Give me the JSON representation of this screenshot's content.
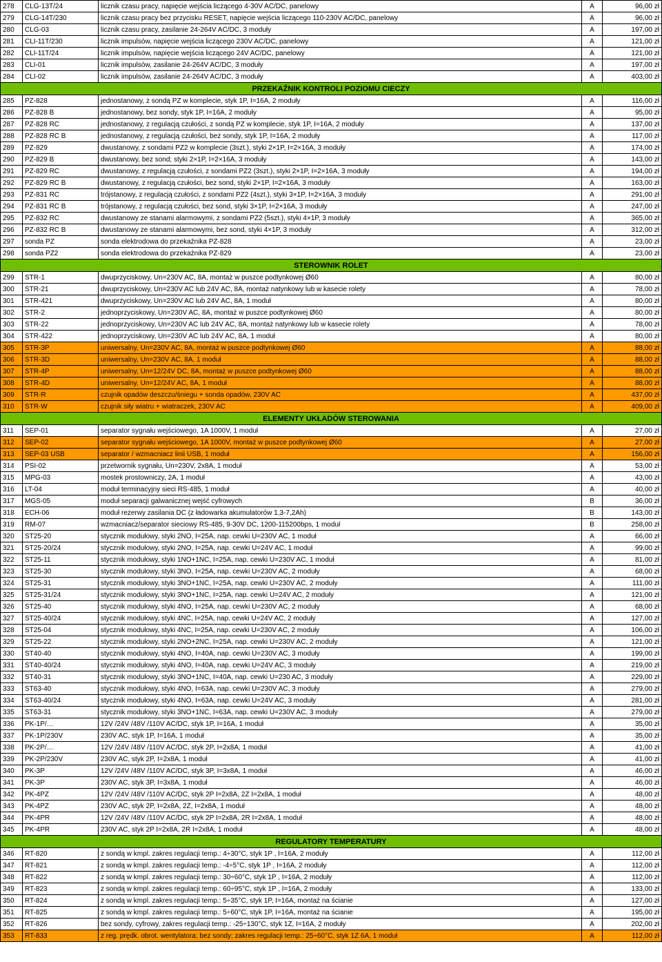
{
  "colors": {
    "green": "#6fbf00",
    "orange": "#ff9900",
    "border": "#000000",
    "bg": "#ffffff"
  },
  "sections": [
    {
      "header": null,
      "rows": [
        {
          "n": "278",
          "code": "CLG-13T/24",
          "desc": "licznik czasu pracy, napięcie wejścia liczącego 4-30V AC/DC, panelowy",
          "cat": "A",
          "price": "96,00 zł"
        },
        {
          "n": "279",
          "code": "CLG-14T/230",
          "desc": "licznik czasu pracy bez przycisku RESET, napięcie wejścia liczącego 110-230V AC/DC, panelowy",
          "cat": "A",
          "price": "96,00 zł"
        },
        {
          "n": "280",
          "code": "CLG-03",
          "desc": "licznik czasu pracy, zasilanie 24-264V AC/DC, 3 moduły",
          "cat": "A",
          "price": "197,00 zł"
        },
        {
          "n": "281",
          "code": "CLI-11T/230",
          "desc": "licznik impulsów, napięcie wejścia liczącego 230V AC/DC, panelowy",
          "cat": "A",
          "price": "121,00 zł"
        },
        {
          "n": "282",
          "code": "CLI-11T/24",
          "desc": "licznik impulsów,  napięcie wejścia liczącego 24V AC/DC, panelowy",
          "cat": "A",
          "price": "121,00 zł"
        },
        {
          "n": "283",
          "code": "CLI-01",
          "desc": "licznik impulsów, zasilanie 24-264V AC/DC, 3 moduły",
          "cat": "A",
          "price": "197,00 zł"
        },
        {
          "n": "284",
          "code": "CLI-02",
          "desc": "licznik impulsów, zasilanie 24-264V AC/DC, 3 moduły",
          "cat": "A",
          "price": "403,00 zł"
        }
      ]
    },
    {
      "header": "PRZEKAŹNIK KONTROLI POZIOMU CIECZY",
      "rows": [
        {
          "n": "285",
          "code": "PZ-828",
          "desc": "jednostanowy, z sondą PZ w komplecie, styk 1P, I=16A, 2 moduły",
          "cat": "A",
          "price": "116,00 zł"
        },
        {
          "n": "286",
          "code": "PZ-828 B",
          "desc": "jednostanowy, bez sondy, styk 1P, I=16A, 2 moduły",
          "cat": "A",
          "price": "95,00 zł"
        },
        {
          "n": "287",
          "code": "PZ-828 RC",
          "desc": "jednostanowy, z regulacją czułości, z sondą PZ w komplecie, styk 1P, I=16A, 2 moduły",
          "cat": "A",
          "price": "137,00 zł"
        },
        {
          "n": "288",
          "code": "PZ-828 RC B",
          "desc": "jednostanowy, z regulacją czułości, bez sondy, styk 1P, I=16A, 2 moduły",
          "cat": "A",
          "price": "117,00 zł"
        },
        {
          "n": "289",
          "code": "PZ-829",
          "desc": "dwustanowy, z sondami PZ2 w komplecie (3szt.), styki 2×1P, I=2×16A, 3 moduły",
          "cat": "A",
          "price": "174,00 zł"
        },
        {
          "n": "290",
          "code": "PZ-829 B",
          "desc": "dwustanowy, bez sond;  styki 2×1P, I=2×16A, 3 moduły",
          "cat": "A",
          "price": "143,00 zł"
        },
        {
          "n": "291",
          "code": "PZ-829 RC",
          "desc": "dwustanowy, z regulacją czułości, z sondami PZ2 (3szt.), styki 2×1P, I=2×16A, 3 moduły",
          "cat": "A",
          "price": "194,00 zł"
        },
        {
          "n": "292",
          "code": "PZ-829 RC B",
          "desc": "dwustanowy, z regulacją czułości, bez sond,  styki 2×1P, I=2×16A, 3 moduły",
          "cat": "A",
          "price": "163,00 zł"
        },
        {
          "n": "293",
          "code": "PZ-831 RC",
          "desc": "trójstanowy, z regulacją czułości, z sondami PZ2 (4szt.),  styki 3×1P, I=2×16A, 3 moduły",
          "cat": "A",
          "price": "291,00 zł"
        },
        {
          "n": "294",
          "code": "PZ-831 RC B",
          "desc": "trójstanowy, z regulacją czułości, bez sond, styki 3×1P, I=2×16A, 3 moduły",
          "cat": "A",
          "price": "247,00 zł"
        },
        {
          "n": "295",
          "code": "PZ-832 RC",
          "desc": "dwustanowy ze stanami alarmowymi, z sondami PZ2 (5szt.), styki 4×1P, 3 moduły",
          "cat": "A",
          "price": "365,00 zł"
        },
        {
          "n": "296",
          "code": "PZ-832 RC B",
          "desc": "dwustanowy ze stanami alarmowymi, bez sond, styki 4×1P, 3 moduły",
          "cat": "A",
          "price": "312,00 zł"
        },
        {
          "n": "297",
          "code": "sonda PZ",
          "desc": "sonda elektrodowa do przekaźnika PZ-828",
          "cat": "A",
          "price": "23,00 zł"
        },
        {
          "n": "298",
          "code": "sonda PZ2",
          "desc": "sonda elektrodowa  do przekaźnika PZ-829",
          "cat": "A",
          "price": "23,00 zł"
        }
      ]
    },
    {
      "header": "STEROWNIK ROLET",
      "rows": [
        {
          "n": "299",
          "code": "STR-1",
          "desc": "dwuprzyciskowy, Un=230V AC, 8A, montaż w puszce podtynkowej Ø60",
          "cat": "A",
          "price": "80,00 zł"
        },
        {
          "n": "300",
          "code": "STR-21",
          "desc": "dwuprzyciskowy, Un=230V AC lub 24V AC, 8A, montaż natynkowy lub w kasecie rolety",
          "cat": "A",
          "price": "78,00 zł"
        },
        {
          "n": "301",
          "code": "STR-421",
          "desc": "dwuprzyciskowy, Un=230V AC lub 24V AC, 8A, 1 moduł",
          "cat": "A",
          "price": "80,00 zł"
        },
        {
          "n": "302",
          "code": "STR-2",
          "desc": "jednoprzyciskowy, Un=230V AC, 8A, montaż w puszce podtynkowej Ø60",
          "cat": "A",
          "price": "80,00 zł"
        },
        {
          "n": "303",
          "code": "STR-22",
          "desc": "jednoprzyciskowy, Un=230V AC lub 24V AC, 8A, montaż natynkowy lub w kasecie rolety",
          "cat": "A",
          "price": "78,00 zł"
        },
        {
          "n": "304",
          "code": "STR-422",
          "desc": "jednoprzyciskowy, Un=230V AC lub 24V AC, 8A, 1 moduł",
          "cat": "A",
          "price": "80,00 zł"
        },
        {
          "n": "305",
          "code": "STR-3P",
          "desc": "uniwersalny, Un=230V AC, 8A, montaż w puszce podtynkowej Ø60",
          "cat": "A",
          "price": "88,00 zł",
          "hl": "orange"
        },
        {
          "n": "306",
          "code": "STR-3D",
          "desc": "uniwersalny, Un=230V AC, 8A, 1 moduł",
          "cat": "A",
          "price": "88,00 zł",
          "hl": "orange"
        },
        {
          "n": "307",
          "code": "STR-4P",
          "desc": "uniwersalny, Un=12/24V DC, 8A, montaż w puszce podtynkowej Ø60",
          "cat": "A",
          "price": "88,00 zł",
          "hl": "orange"
        },
        {
          "n": "308",
          "code": "STR-4D",
          "desc": "uniwersalny, Un=12/24V AC, 8A, 1 moduł",
          "cat": "A",
          "price": "88,00 zł",
          "hl": "orange"
        },
        {
          "n": "309",
          "code": "STR-R",
          "desc": "czujnik opadów deszczu/śniegu + sonda opadów, 230V AC",
          "cat": "A",
          "price": "437,00 zł",
          "hl": "orange"
        },
        {
          "n": "310",
          "code": "STR-W",
          "desc": "czujnik siły wiatru + wiatraczek, 230V AC",
          "cat": "A",
          "price": "409,00 zł",
          "hl": "orange"
        }
      ]
    },
    {
      "header": "ELEMENTY UKŁADÓW STEROWANIA",
      "rows": [
        {
          "n": "311",
          "code": "SEP-01",
          "desc": "separator sygnału wejściowego, 1A 1000V, 1 moduł",
          "cat": "A",
          "price": "27,00 zł"
        },
        {
          "n": "312",
          "code": "SEP-02",
          "desc": "separator sygnału wejściowego, 1A 1000V, montaż w puszce podtynkowej Ø60",
          "cat": "A",
          "price": "27,00 zł",
          "hl": "orange"
        },
        {
          "n": "313",
          "code": "SEP-03 USB",
          "desc": "separator / wzmacniacz linii USB, 1 moduł",
          "cat": "A",
          "price": "156,00 zł",
          "hl": "orange"
        },
        {
          "n": "314",
          "code": "PSI-02",
          "desc": "przetwornik sygnału, Un=230V, 2x8A, 1 moduł",
          "cat": "A",
          "price": "53,00 zł"
        },
        {
          "n": "315",
          "code": "MPG-03",
          "desc": "mostek prostowniczy, 2A, 1 moduł",
          "cat": "A",
          "price": "43,00 zł"
        },
        {
          "n": "316",
          "code": "LT-04",
          "desc": "moduł terminacyjny sieci RS-485, 1 moduł",
          "cat": "A",
          "price": "40,00 zł"
        },
        {
          "n": "317",
          "code": "MGS-05",
          "desc": "moduł separacji galwanicznej wejść cyfrowych",
          "cat": "B",
          "price": "36,00 zł"
        },
        {
          "n": "318",
          "code": "ECH-06",
          "desc": "moduł rezerwy zasilania DC (z ładowarka akumulatorów 1,3-7,2Ah)",
          "cat": "B",
          "price": "143,00 zł"
        },
        {
          "n": "319",
          "code": "RM-07",
          "desc": "wzmacniacz/separator sieciowy RS-485, 9-30V DC, 1200-115200bps, 1 moduł",
          "cat": "B",
          "price": "258,00 zł"
        },
        {
          "n": "320",
          "code": "ST25-20",
          "desc": "stycznik modułowy, styki 2NO, I=25A, nap. cewki U=230V AC, 1 moduł",
          "cat": "A",
          "price": "66,00 zł"
        },
        {
          "n": "321",
          "code": "ST25-20/24",
          "desc": "stycznik modułowy, styki 2NO, I=25A, nap. cewki U=24V AC, 1 moduł",
          "cat": "A",
          "price": "99,00 zł"
        },
        {
          "n": "322",
          "code": "ST25-11",
          "desc": "stycznik modułowy, styki 1NO+1NC, I=25A, nap. cewki U=230V AC, 1 moduł",
          "cat": "A",
          "price": "81,00 zł"
        },
        {
          "n": "323",
          "code": "ST25-30",
          "desc": "stycznik modułowy, styki 3NO, I=25A, nap. cewki U=230V AC, 2 moduły",
          "cat": "A",
          "price": "68,00 zł"
        },
        {
          "n": "324",
          "code": "ST25-31",
          "desc": "stycznik modułowy, styki 3NO+1NC, I=25A, nap. cewki U=230V AC, 2 moduły",
          "cat": "A",
          "price": "111,00 zł"
        },
        {
          "n": "325",
          "code": "ST25-31/24",
          "desc": "stycznik modułowy, styki 3NO+1NC, I=25A, nap. cewki U=24V AC, 2 moduły",
          "cat": "A",
          "price": "121,00 zł"
        },
        {
          "n": "326",
          "code": "ST25-40",
          "desc": "stycznik modułowy, styki 4NO, I=25A, nap. cewki U=230V AC, 2 moduły",
          "cat": "A",
          "price": "68,00 zł"
        },
        {
          "n": "327",
          "code": "ST25-40/24",
          "desc": "stycznik modułowy, styki 4NC, I=25A, nap. cewki U=24V AC, 2 moduły",
          "cat": "A",
          "price": "127,00 zł"
        },
        {
          "n": "328",
          "code": "ST25-04",
          "desc": "stycznik modułowy, styki 4NC, I=25A, nap. cewki U=230V AC, 2 moduły",
          "cat": "A",
          "price": "106,00 zł"
        },
        {
          "n": "329",
          "code": "ST25-22",
          "desc": "stycznik modułowy, styki 2NO+2NC, I=25A, nap. cewki U=230V AC, 2 moduły",
          "cat": "A",
          "price": "121,00 zł"
        },
        {
          "n": "330",
          "code": "ST40-40",
          "desc": "stycznik modułowy, styki 4NO, I=40A, nap. cewki U=230V AC, 3 moduły",
          "cat": "A",
          "price": "199,00 zł"
        },
        {
          "n": "331",
          "code": "ST40-40/24",
          "desc": "stycznik modułowy, styki 4NO, I=40A, nap. cewki U=24V AC, 3 moduły",
          "cat": "A",
          "price": "219,00 zł"
        },
        {
          "n": "332",
          "code": "ST40-31",
          "desc": "stycznik modułowy, styki 3NO+1NC, I=40A, nap. cewki U=230 AC, 3 moduły",
          "cat": "A",
          "price": "229,00 zł"
        },
        {
          "n": "333",
          "code": "ST63-40",
          "desc": "stycznik modułowy, styki 4NO, I=63A, nap. cewki U=230V AC, 3 moduły",
          "cat": "A",
          "price": "279,00 zł"
        },
        {
          "n": "334",
          "code": "ST63-40/24",
          "desc": "stycznik modułowy, styki 4NO, I=63A, nap. cewki U=24V AC, 3 moduły",
          "cat": "A",
          "price": "281,00 zł"
        },
        {
          "n": "335",
          "code": "ST63-31",
          "desc": "stycznik modułowy, styki 3NO+1NC, I=63A, nap. cewki U=230V AC, 3 moduły",
          "cat": "A",
          "price": "279,00 zł"
        },
        {
          "n": "336",
          "code": "PK-1P/…",
          "desc": "12V /24V /48V /110V AC/DC, styk 1P, I=16A, 1 moduł",
          "cat": "A",
          "price": "35,00 zł"
        },
        {
          "n": "337",
          "code": "PK-1P/230V",
          "desc": "230V AC, styk 1P, I=16A, 1 moduł",
          "cat": "A",
          "price": "35,00 zł"
        },
        {
          "n": "338",
          "code": "PK-2P/…",
          "desc": "12V /24V /48V /110V AC/DC, styk 2P, I=2x8A, 1 moduł",
          "cat": "A",
          "price": "41,00 zł"
        },
        {
          "n": "339",
          "code": "PK-2P/230V",
          "desc": "230V AC, styk 2P, I=2x8A, 1 moduł",
          "cat": "A",
          "price": "41,00 zł"
        },
        {
          "n": "340",
          "code": "PK-3P",
          "desc": "12V /24V /48V /110V AC/DC, styk 3P, I=3x8A, 1 moduł",
          "cat": "A",
          "price": "46,00 zł"
        },
        {
          "n": "341",
          "code": "PK-3P",
          "desc": "230V AC, styk 3P, I=3x8A, 1 moduł",
          "cat": "A",
          "price": "46,00 zł"
        },
        {
          "n": "342",
          "code": "PK-4PZ",
          "desc": "12V /24V /48V /110V AC/DC, styk 2P I=2x8A, 2Z I=2x8A, 1 moduł",
          "cat": "A",
          "price": "48,00 zł"
        },
        {
          "n": "343",
          "code": "PK-4PZ",
          "desc": "230V AC, styk 2P, I=2x8A, 2Z, I=2x8A, 1 moduł",
          "cat": "A",
          "price": "48,00 zł"
        },
        {
          "n": "344",
          "code": "PK-4PR",
          "desc": "12V /24V /48V /110V AC/DC, styk 2P I=2x8A, 2R I=2x8A, 1 moduł",
          "cat": "A",
          "price": "48,00 zł"
        },
        {
          "n": "345",
          "code": "PK-4PR",
          "desc": "230V AC, styk 2P I=2x8A, 2R I=2x8A, 1 moduł",
          "cat": "A",
          "price": "48,00 zł"
        }
      ]
    },
    {
      "header": "REGULATORY TEMPERATURY",
      "rows": [
        {
          "n": "346",
          "code": "RT-820",
          "desc": "z sondą w kmpl. zakres regulacji temp.: 4÷30°C, styk 1P , I=16A, 2 moduły",
          "cat": "A",
          "price": "112,00 zł"
        },
        {
          "n": "347",
          "code": "RT-821",
          "desc": "z sondą w kmpl. zakres regulacji temp.: -4÷5°C, styk 1P , I=16A, 2 moduły",
          "cat": "A",
          "price": "112,00 zł"
        },
        {
          "n": "348",
          "code": "RT-822",
          "desc": "z sondą w kmpl. zakres regulacji temp.: 30÷60°C, styk 1P , I=16A, 2 moduły",
          "cat": "A",
          "price": "112,00 zł"
        },
        {
          "n": "349",
          "code": "RT-823",
          "desc": "z sondą w kmpl. zakres regulacji temp.: 60÷95°C, styk 1P , I=16A, 2 moduły",
          "cat": "A",
          "price": "133,00 zł"
        },
        {
          "n": "350",
          "code": "RT-824",
          "desc": "z sondą w kmpl. zakres regulacji temp.: 5÷35°C, styk 1P, I=16A, montaż na ścianie",
          "cat": "A",
          "price": "127,00 zł"
        },
        {
          "n": "351",
          "code": "RT-825",
          "desc": "z sondą w kmpl. zakres regulacji temp.: 5÷60°C, styk 1P, I=16A, montaż na ścianie",
          "cat": "A",
          "price": "195,00 zł"
        },
        {
          "n": "352",
          "code": "RT-826",
          "desc": "bez sondy, cyfrowy, zakres regulacji temp.: -25÷130°C, styk 1Z, I=16A, 2 moduły",
          "cat": "A",
          "price": "202,00 zł"
        },
        {
          "n": "353",
          "code": "RT-833",
          "desc": "z reg. prędk. obrot. wentylatora; bez sondy; zakres regulacji temp.: 25÷60°C, styk 1Z 6A, 1 moduł",
          "cat": "A",
          "price": "112,00 zł",
          "hl": "orange"
        }
      ]
    }
  ]
}
